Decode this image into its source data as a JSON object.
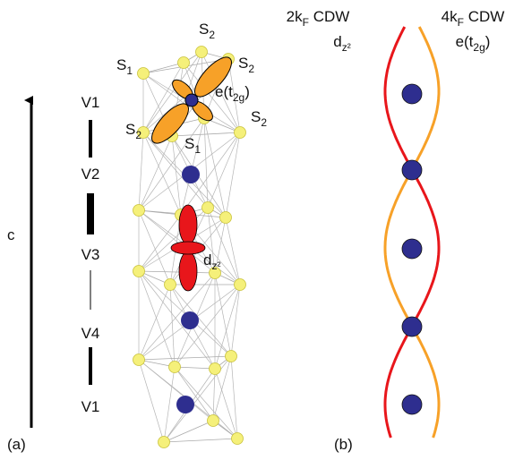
{
  "panel_a": {
    "label": "(a)",
    "axis_label": "c",
    "v_labels": [
      "V1",
      "V2",
      "V3",
      "V4",
      "V1"
    ],
    "site_labels": [
      [
        {
          "t": "S"
        },
        {
          "t": "2",
          "sub": true
        }
      ],
      [
        {
          "t": "S"
        },
        {
          "t": "1",
          "sub": true
        }
      ],
      [
        {
          "t": "S"
        },
        {
          "t": "2",
          "sub": true
        }
      ],
      [
        {
          "t": "S"
        },
        {
          "t": "2",
          "sub": true
        }
      ],
      [
        {
          "t": "S"
        },
        {
          "t": "1",
          "sub": true
        }
      ],
      [
        {
          "t": "S"
        },
        {
          "t": "2",
          "sub": true
        }
      ]
    ],
    "orbital_labels": [
      [
        {
          "t": "e(t"
        },
        {
          "t": "2g",
          "sub": true
        },
        {
          "t": ")"
        }
      ],
      [
        {
          "t": "d"
        },
        {
          "t": "z²",
          "sub": true
        }
      ]
    ]
  },
  "panel_b": {
    "label": "(b)",
    "cdw_labels": [
      [
        {
          "t": "2k"
        },
        {
          "t": "F",
          "sub": true
        },
        {
          "t": " CDW"
        }
      ],
      [
        {
          "t": "d"
        },
        {
          "t": "z²",
          "sub": true
        }
      ],
      [
        {
          "t": "4k"
        },
        {
          "t": "F",
          "sub": true
        },
        {
          "t": " CDW"
        }
      ],
      [
        {
          "t": "e(t"
        },
        {
          "t": "2g",
          "sub": true
        },
        {
          "t": ")"
        }
      ]
    ]
  }
}
